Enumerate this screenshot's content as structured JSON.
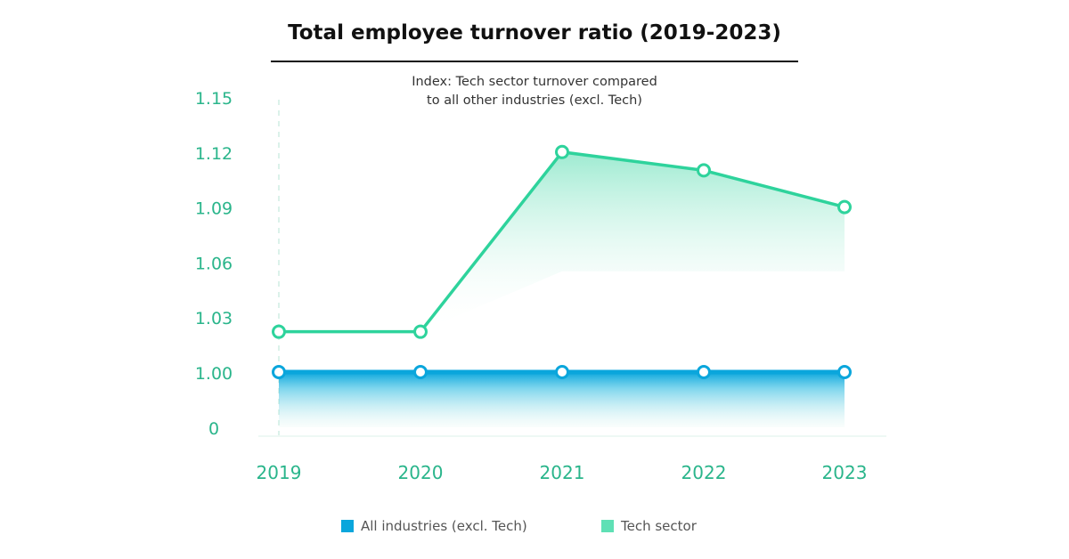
{
  "page": {
    "title": "Total employee turnover ratio (2019-2023)",
    "subtitle_line1": "Index: Tech sector turnover compared",
    "subtitle_line2": "to all other industries (excl. Tech)"
  },
  "colors": {
    "all_industries": "#0aa6dc",
    "tech_sector": "#2ed39c",
    "axis_text": "#2ab58b",
    "legend_tech_swatch": "#5fe0b5"
  },
  "chart_data": {
    "type": "line",
    "title": "Total employee turnover ratio (2019-2023)",
    "subtitle": "Index: Tech sector turnover compared to all other industries (excl. Tech)",
    "xlabel": "",
    "ylabel": "",
    "categories": [
      "2019",
      "2020",
      "2021",
      "2022",
      "2023"
    ],
    "y_tick_labels": [
      "0",
      "1.00",
      "1.03",
      "1.06",
      "1.09",
      "1.12",
      "1.15"
    ],
    "y_tick_values": [
      0,
      1.0,
      1.03,
      1.06,
      1.09,
      1.12,
      1.15
    ],
    "ylim": [
      0,
      1.15
    ],
    "axis_break": "between 0 and 1.00",
    "grid": false,
    "legend_position": "bottom",
    "series": [
      {
        "name": "All industries (excl. Tech)",
        "values": [
          1.0,
          1.0,
          1.0,
          1.0,
          1.0
        ],
        "style": "line with area fill below"
      },
      {
        "name": "Tech sector",
        "values": [
          1.022,
          1.022,
          1.12,
          1.11,
          1.09
        ],
        "style": "line with gradient fill"
      }
    ]
  }
}
